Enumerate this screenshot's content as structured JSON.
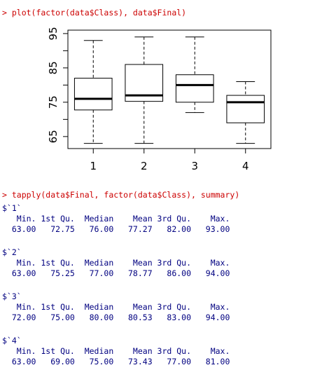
{
  "console": {
    "cmd1": "> plot(factor(data$Class), data$Final)",
    "cmd2": "> tapply(data$Final, factor(data$Class), summary)",
    "summary_header": "   Min. 1st Qu.  Median    Mean 3rd Qu.    Max.",
    "groups": [
      {
        "label": "$`1`",
        "values": "  63.00   72.75   76.00   77.27   82.00   93.00"
      },
      {
        "label": "$`2`",
        "values": "  63.00   75.25   77.00   78.77   86.00   94.00"
      },
      {
        "label": "$`3`",
        "values": "  72.00   75.00   80.00   80.53   83.00   94.00"
      },
      {
        "label": "$`4`",
        "values": "  63.00   69.00   75.00   73.43   77.00   81.00"
      }
    ]
  },
  "chart_data": {
    "type": "box",
    "categories": [
      "1",
      "2",
      "3",
      "4"
    ],
    "yticks": [
      "65",
      "75",
      "85",
      "95"
    ],
    "ylim": [
      61.5,
      96
    ],
    "boxes": [
      {
        "min": 63,
        "q1": 72.75,
        "median": 76,
        "q3": 82,
        "max": 93
      },
      {
        "min": 63,
        "q1": 75.25,
        "median": 77,
        "q3": 86,
        "max": 94
      },
      {
        "min": 72,
        "q1": 75,
        "median": 80,
        "q3": 83,
        "max": 94
      },
      {
        "min": 63,
        "q1": 69,
        "median": 75,
        "q3": 77,
        "max": 81
      }
    ]
  }
}
